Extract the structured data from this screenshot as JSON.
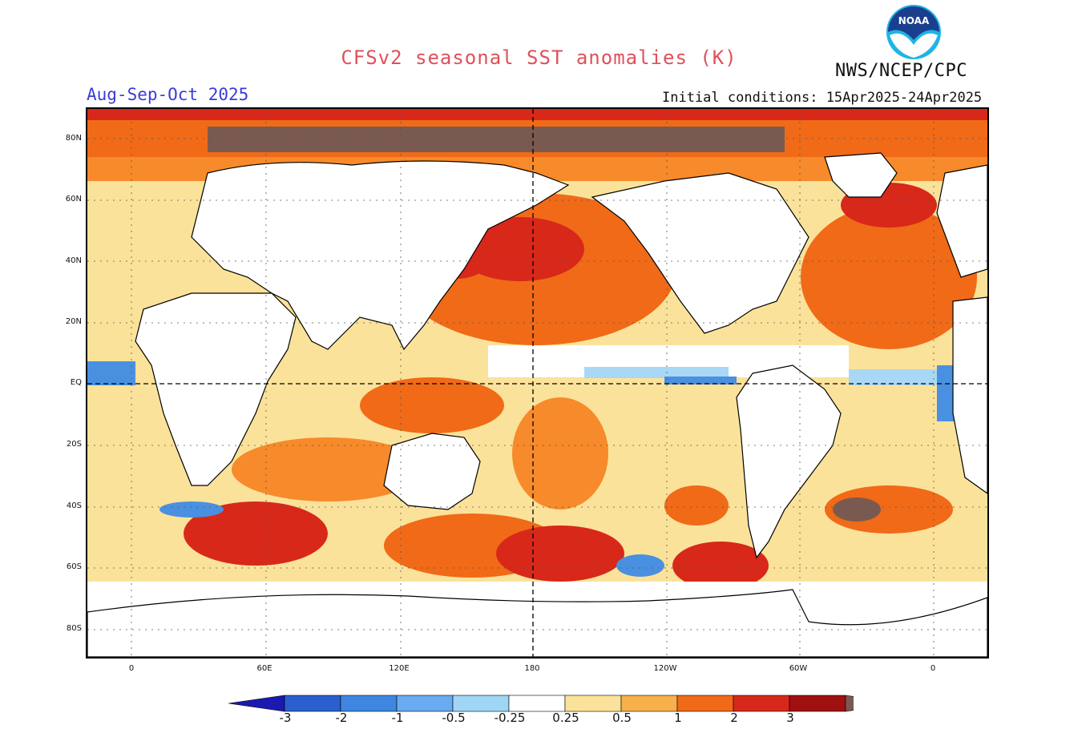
{
  "header": {
    "title": "CFSv2 seasonal SST anomalies (K)",
    "season": "Aug-Sep-Oct 2025",
    "agency": "NWS/NCEP/CPC",
    "initial_conditions": "Initial conditions: 15Apr2025-24Apr2025",
    "logo_text": "NOAA"
  },
  "axes": {
    "lat_labels": [
      "80N",
      "60N",
      "40N",
      "20N",
      "EQ",
      "20S",
      "40S",
      "60S",
      "80S"
    ],
    "lon_labels": [
      "0",
      "60E",
      "120E",
      "180",
      "120W",
      "60W",
      "0"
    ]
  },
  "legend": {
    "labels": [
      "-3",
      "-2",
      "-1",
      "-0.5",
      "-0.25",
      "0.25",
      "0.5",
      "1",
      "2",
      "3"
    ],
    "colors": [
      "#1a1ab0",
      "#2a5fd0",
      "#3f86e0",
      "#6aaaf0",
      "#9fd6f5",
      "#ffffff",
      "#fbe29a",
      "#f7b04a",
      "#f06a18",
      "#d8281a",
      "#a01010",
      "#7a5a50"
    ]
  },
  "colors": {
    "warm_light": "#fbe29a",
    "warm_mid": "#f78a2a",
    "warm_strong": "#e8501a",
    "warm_hot": "#c8281c",
    "extreme": "#7a5a50",
    "cool_light": "#a8d8f5",
    "cool_mid": "#4a90e0",
    "neutral": "#ffffff"
  }
}
